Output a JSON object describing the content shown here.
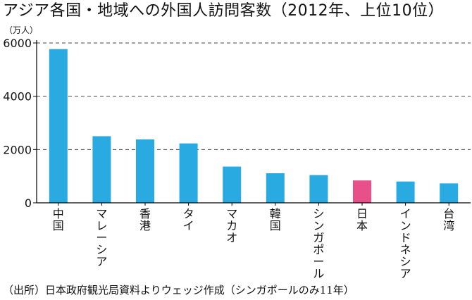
{
  "title": "アジア各国・地域への外国人訪問客数（2012年、上位10位）",
  "source": "（出所）日本政府観光局資料よりウェッジ作成（シンガポールのみ11年）",
  "colors": {
    "bar": "#29abe2",
    "highlight": "#e8508a",
    "axis": "#000000",
    "grid": "#444444"
  },
  "chart_data": {
    "type": "bar",
    "title": "アジア各国・地域への外国人訪問客数（2012年、上位10位）",
    "ylabel": "（万人）",
    "xlabel": "",
    "ylim": [
      0,
      6000
    ],
    "yticks": [
      "0",
      "2000",
      "4000",
      "6000"
    ],
    "grid": true,
    "categories": [
      "中国",
      "マレーシア",
      "香港",
      "タイ",
      "マカオ",
      "韓国",
      "シンガポール",
      "日本",
      "インドネシア",
      "台湾"
    ],
    "values": [
      5770,
      2500,
      2380,
      2230,
      1360,
      1110,
      1040,
      840,
      800,
      730
    ],
    "highlight_category": "日本"
  }
}
